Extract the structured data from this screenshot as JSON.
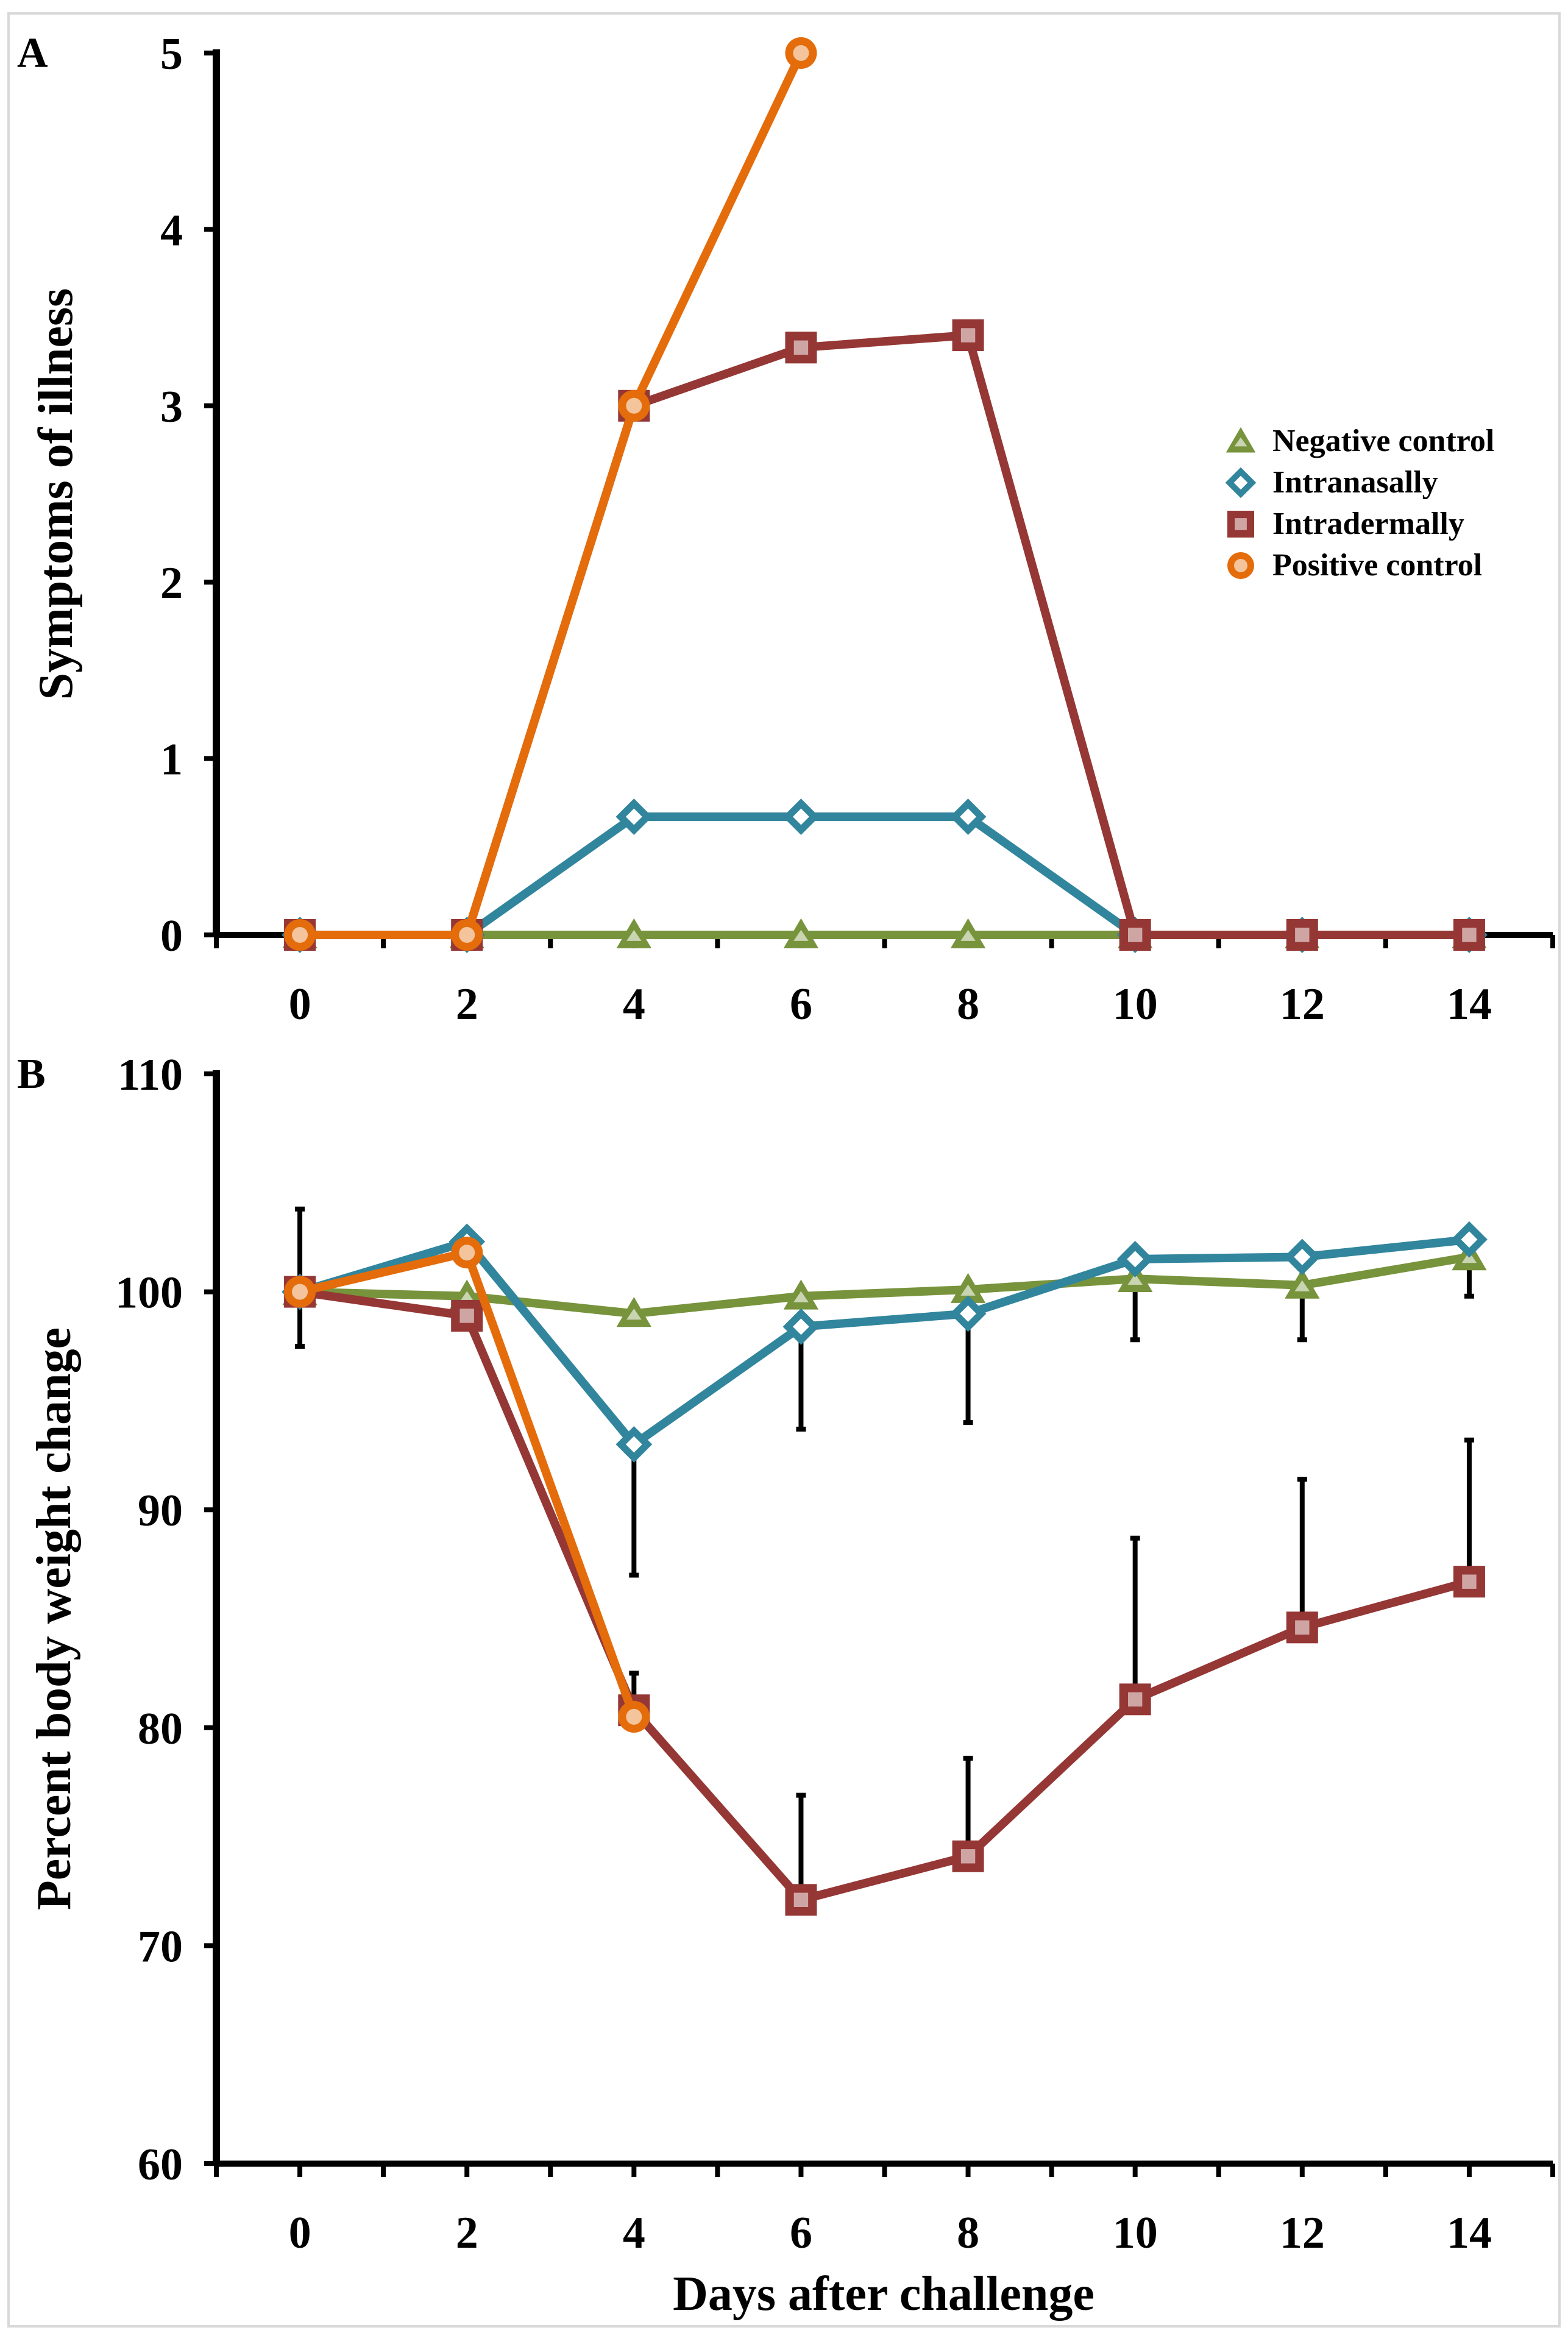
{
  "chart_data": [
    {
      "panel_label": "A",
      "type": "line",
      "xlabel": "",
      "ylabel": "Symptoms of illness",
      "xlim": [
        -1,
        15
      ],
      "ylim": [
        0,
        5
      ],
      "x_ticks": [
        0,
        2,
        4,
        6,
        8,
        10,
        12,
        14
      ],
      "y_ticks": [
        0,
        1,
        2,
        3,
        4,
        5
      ],
      "grid": false,
      "legend_position": "right",
      "series": [
        {
          "name": "Negative control",
          "color": "#77933c",
          "marker": "triangle",
          "x": [
            0,
            2,
            4,
            6,
            8,
            10,
            12,
            14
          ],
          "y": [
            0,
            0,
            0,
            0,
            0,
            0,
            0,
            0
          ]
        },
        {
          "name": "Intranasally",
          "color": "#31859c",
          "marker": "diamond",
          "x": [
            0,
            2,
            4,
            6,
            8,
            10,
            12,
            14
          ],
          "y": [
            0,
            0,
            0.67,
            0.67,
            0.67,
            0,
            0,
            0
          ]
        },
        {
          "name": "Intradermally",
          "color": "#953735",
          "marker": "square",
          "x": [
            0,
            2,
            4,
            6,
            8,
            10,
            12,
            14
          ],
          "y": [
            0,
            0,
            3,
            3.33,
            3.4,
            0,
            0,
            0
          ]
        },
        {
          "name": "Positive control",
          "color": "#e46c0a",
          "marker": "circle",
          "x": [
            0,
            2,
            4,
            6
          ],
          "y": [
            0,
            0,
            3,
            5
          ]
        }
      ]
    },
    {
      "panel_label": "B",
      "type": "line",
      "xlabel": "Days after challenge",
      "ylabel": "Percent body weight change",
      "xlim": [
        -1,
        15
      ],
      "ylim": [
        60,
        110
      ],
      "x_ticks": [
        0,
        2,
        4,
        6,
        8,
        10,
        12,
        14
      ],
      "y_ticks": [
        60,
        70,
        80,
        90,
        100,
        110
      ],
      "grid": false,
      "series": [
        {
          "name": "Negative control",
          "color": "#77933c",
          "marker": "triangle",
          "x": [
            0,
            2,
            4,
            6,
            8,
            10,
            12,
            14
          ],
          "y": [
            100,
            99.8,
            99,
            99.8,
            100.1,
            100.6,
            100.3,
            101.6
          ],
          "err_up": [
            0,
            0,
            0,
            0,
            0,
            0,
            0,
            0
          ],
          "err_down": [
            0,
            0,
            0,
            0,
            0,
            0,
            0,
            0
          ]
        },
        {
          "name": "Intranasally",
          "color": "#31859c",
          "marker": "diamond",
          "x": [
            0,
            2,
            4,
            6,
            8,
            10,
            12,
            14
          ],
          "y": [
            100,
            102.3,
            93,
            98.4,
            99,
            101.5,
            101.6,
            102.4
          ],
          "err_up": [
            0,
            0,
            0,
            0,
            0,
            0,
            0,
            0
          ],
          "err_down": [
            2.5,
            0,
            6,
            4.7,
            5,
            3.7,
            3.8,
            2.6
          ]
        },
        {
          "name": "Intradermally",
          "color": "#953735",
          "marker": "square",
          "x": [
            0,
            2,
            4,
            6,
            8,
            10,
            12,
            14
          ],
          "y": [
            100,
            98.9,
            80.8,
            72.1,
            74.1,
            81.3,
            84.6,
            86.7
          ],
          "err_up": [
            3.8,
            0,
            1.7,
            4.8,
            4.5,
            7.4,
            6.8,
            6.5
          ],
          "err_down": [
            0,
            0,
            0,
            0,
            0,
            0,
            0,
            0
          ]
        },
        {
          "name": "Positive control",
          "color": "#e46c0a",
          "marker": "circle",
          "x": [
            0,
            2,
            4
          ],
          "y": [
            100,
            101.8,
            80.5
          ],
          "err_up": [
            0,
            0,
            0
          ],
          "err_down": [
            0,
            0,
            0
          ]
        }
      ]
    }
  ]
}
